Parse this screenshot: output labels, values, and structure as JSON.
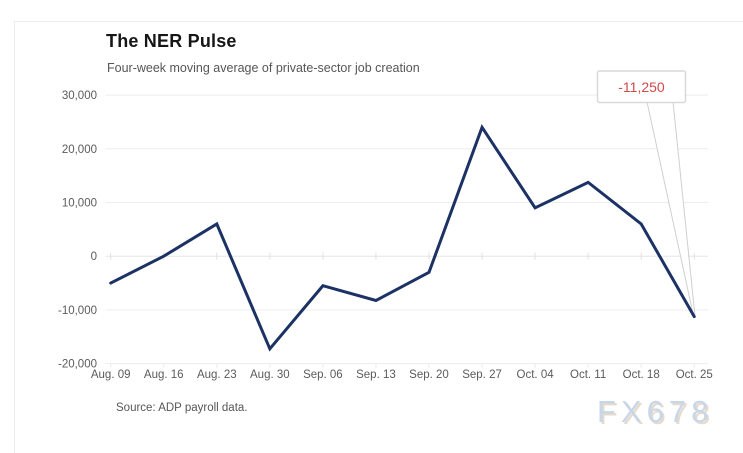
{
  "header": {
    "title": "The NER Pulse",
    "subtitle": "Four-week moving average of private-sector job creation"
  },
  "footer": {
    "source": "Source: ADP payroll data.",
    "watermark": "FX678"
  },
  "chart_data": {
    "type": "line",
    "title": "The NER Pulse",
    "subtitle": "Four-week moving average of private-sector job creation",
    "categories": [
      "Aug. 09",
      "Aug. 16",
      "Aug. 23",
      "Aug. 30",
      "Sep. 06",
      "Sep. 13",
      "Sep. 20",
      "Sep. 27",
      "Oct. 04",
      "Oct. 11",
      "Oct. 18",
      "Oct. 25"
    ],
    "series": [
      {
        "name": "Four-week moving average of private-sector job creation",
        "values": [
          -5000,
          0,
          6000,
          -17250,
          -5500,
          -8250,
          -3000,
          24000,
          9000,
          13750,
          6000,
          -11250
        ]
      }
    ],
    "ylim": [
      -20000,
      30000
    ],
    "yticks": [
      30000,
      20000,
      10000,
      0,
      -10000,
      -20000
    ],
    "ytick_labels": [
      "30,000",
      "20,000",
      "10,000",
      "0",
      "-10,000",
      "-20,000"
    ],
    "grid": true,
    "legend": "none",
    "annotation": {
      "text": "-11,250",
      "value": -11250,
      "target_index": 11
    },
    "line_color": "#1c3264",
    "annotation_color": "#d0494c",
    "grid_color": "#ededed",
    "label_color": "#5b5b5b"
  }
}
